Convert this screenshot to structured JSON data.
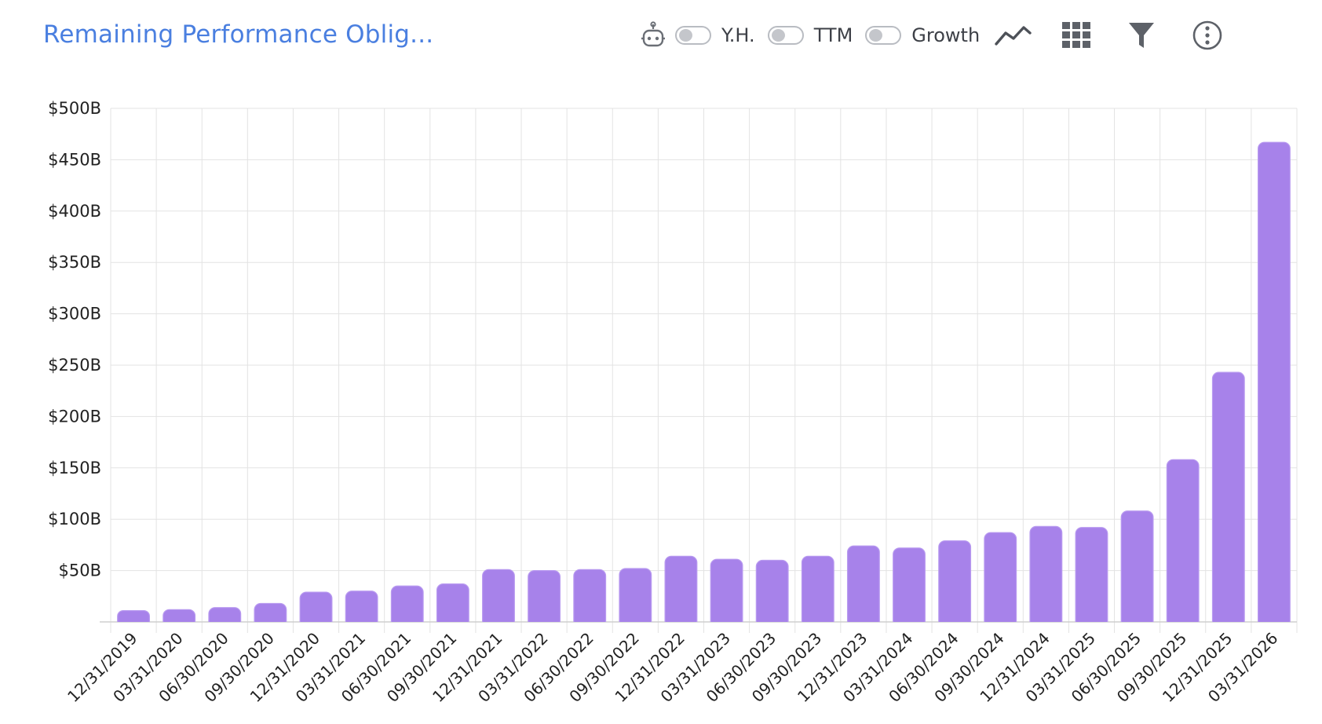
{
  "header": {
    "title": "Remaining Performance Oblig...",
    "robot_icon": "robot-icon",
    "toggles": [
      {
        "label": "Y.H.",
        "on": false
      },
      {
        "label": "TTM",
        "on": false
      },
      {
        "label": "Growth",
        "on": false
      }
    ],
    "tool_icons": [
      "line-chart-icon",
      "grid-icon",
      "filter-icon",
      "more-info-icon"
    ]
  },
  "colors": {
    "title": "#4a7fe0",
    "bar": "#a782ea",
    "bar_highlight": "#b99bf0",
    "grid": "#e3e3e3",
    "icon": "#6b6f76"
  },
  "chart_data": {
    "type": "bar",
    "title": "Remaining Performance Oblig...",
    "xlabel": "",
    "ylabel": "",
    "ylim": [
      0,
      500
    ],
    "ytick_values": [
      50,
      100,
      150,
      200,
      250,
      300,
      350,
      400,
      450,
      500
    ],
    "ytick_labels": [
      "$50B",
      "$100B",
      "$150B",
      "$200B",
      "$250B",
      "$300B",
      "$350B",
      "$400B",
      "$450B",
      "$500B"
    ],
    "grid": true,
    "legend": "none",
    "categories": [
      "12/31/2019",
      "03/31/2020",
      "06/30/2020",
      "09/30/2020",
      "12/31/2020",
      "03/31/2021",
      "06/30/2021",
      "09/30/2021",
      "12/31/2021",
      "03/31/2022",
      "06/30/2022",
      "09/30/2022",
      "12/31/2022",
      "03/31/2023",
      "06/30/2023",
      "09/30/2023",
      "12/31/2023",
      "03/31/2024",
      "06/30/2024",
      "09/30/2024",
      "12/31/2024",
      "03/31/2025",
      "06/30/2025",
      "09/30/2025",
      "12/31/2025",
      "03/31/2026"
    ],
    "values": [
      11,
      12,
      14,
      18,
      29,
      30,
      35,
      37,
      51,
      50,
      51,
      52,
      64,
      61,
      60,
      64,
      74,
      72,
      79,
      87,
      93,
      92,
      108,
      158,
      243,
      467
    ]
  }
}
